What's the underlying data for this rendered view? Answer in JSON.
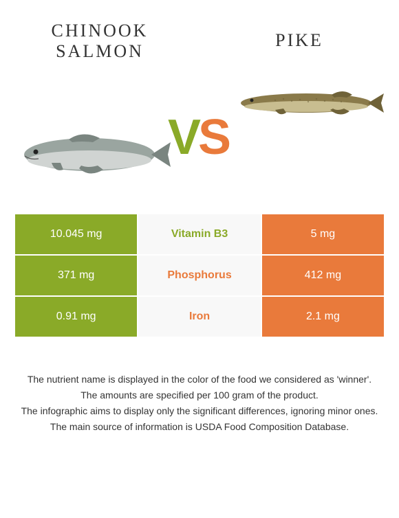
{
  "header": {
    "left_line1": "CHINOOK",
    "left_line2": "SALMON",
    "right": "PIKE"
  },
  "vs": {
    "v": "V",
    "s": "S"
  },
  "colors": {
    "left": "#8aaa28",
    "right": "#e97a3b",
    "mid_bg": "#f8f8f8",
    "text": "#333333",
    "white": "#ffffff"
  },
  "rows": [
    {
      "left": "10.045 mg",
      "name": "Vitamin B3",
      "right": "5 mg",
      "winner": "left"
    },
    {
      "left": "371 mg",
      "name": "Phosphorus",
      "right": "412 mg",
      "winner": "right"
    },
    {
      "left": "0.91 mg",
      "name": "Iron",
      "right": "2.1 mg",
      "winner": "right"
    }
  ],
  "footnotes": [
    "The nutrient name is displayed in the color of the food we considered as 'winner'.",
    "The amounts are specified per 100 gram of the product.",
    "The infographic aims to display only the significant differences, ignoring minor ones.",
    "The main source of information is USDA Food Composition Database."
  ],
  "fish_left": {
    "body_fill": "#9aa5a0",
    "belly_fill": "#d0d4d2",
    "fin_fill": "#7a8580",
    "eye": "#222"
  },
  "fish_right": {
    "body_fill": "#8a7a4a",
    "belly_fill": "#c8bd90",
    "fin_fill": "#6f6238",
    "eye": "#222"
  }
}
